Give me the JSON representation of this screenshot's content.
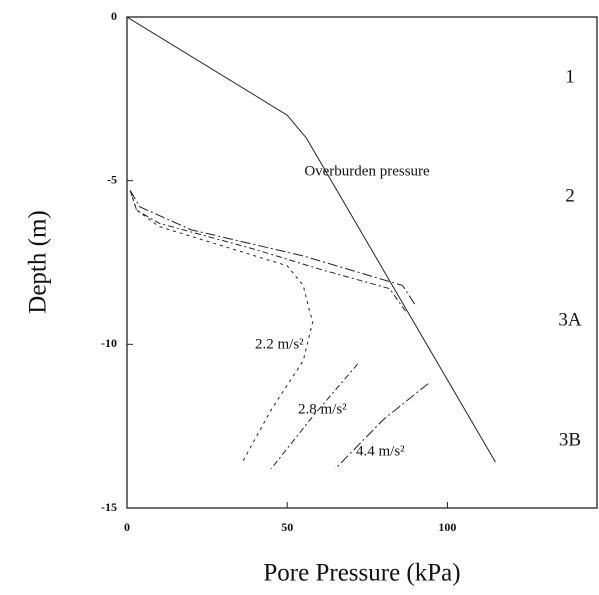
{
  "chart_data": {
    "type": "line",
    "x_label": "Pore Pressure (kPa)",
    "y_label": "Depth (m)",
    "xlim": [
      0,
      147
    ],
    "ylim": [
      -15,
      0
    ],
    "xticks": [
      0,
      50,
      100
    ],
    "yticks": [
      0,
      -5,
      -10,
      -15
    ],
    "series": [
      {
        "name": "Overburden pressure",
        "color": "#222",
        "dash": "none",
        "x": [
          0,
          50,
          56,
          115
        ],
        "values": [
          0,
          -3.0,
          -3.7,
          -13.6
        ]
      },
      {
        "name": "2.2 m/s²",
        "color": "#222",
        "dash": "3 4",
        "x": [
          1,
          3,
          10,
          30,
          50,
          55,
          57,
          58,
          55,
          45,
          36
        ],
        "values": [
          -5.3,
          -5.9,
          -6.4,
          -7.0,
          -7.6,
          -8.2,
          -9.0,
          -9.3,
          -10.5,
          -12.0,
          -13.6
        ]
      },
      {
        "name": "2.8 m/s²",
        "color": "#222",
        "dash": "6 3 2 3",
        "x": [
          1,
          3,
          10,
          40,
          60,
          82,
          87,
          null,
          72,
          58,
          45
        ],
        "values": [
          -5.3,
          -5.9,
          -6.3,
          -7.1,
          -7.7,
          -8.3,
          -9.0,
          null,
          -10.6,
          -12.2,
          -13.8
        ]
      },
      {
        "name": "4.4 m/s²",
        "color": "#222",
        "dash": "10 3 2 3",
        "x": [
          1,
          4,
          20,
          55,
          86,
          90,
          null,
          94,
          80,
          65
        ],
        "values": [
          -5.3,
          -5.8,
          -6.5,
          -7.3,
          -8.2,
          -8.8,
          null,
          -11.2,
          -12.3,
          -13.8
        ]
      }
    ],
    "zones": [
      "1",
      "2",
      "3A",
      "3B"
    ]
  }
}
